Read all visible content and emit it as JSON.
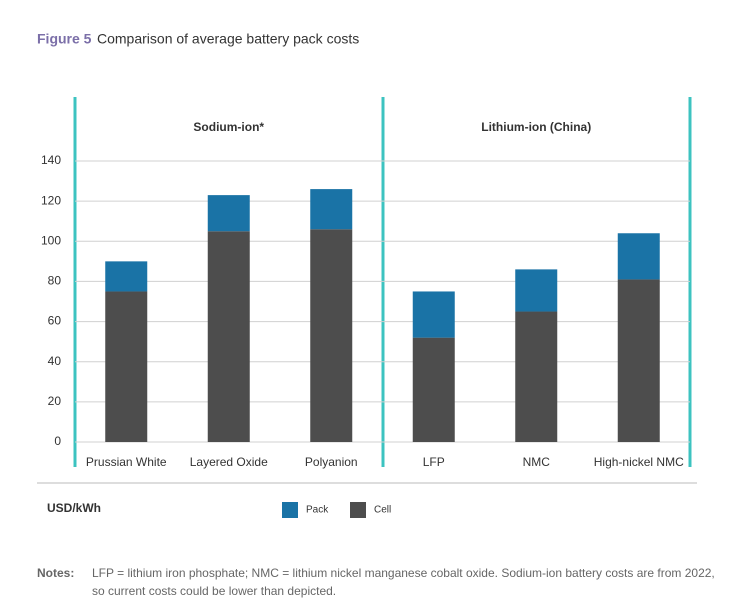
{
  "chart_data": {
    "type": "bar",
    "stacked": true,
    "figure_label": "Figure 5",
    "title": "Comparison of average battery pack costs",
    "group_labels": [
      "Sodium-ion*",
      "Lithium-ion (China)"
    ],
    "categories": [
      "Prussian White",
      "Layered Oxide",
      "Polyanion",
      "LFP",
      "NMC",
      "High-nickel NMC"
    ],
    "series": [
      {
        "name": "Cell",
        "color": "#4d4d4d",
        "values": [
          75,
          105,
          106,
          52,
          65,
          81
        ]
      },
      {
        "name": "Pack",
        "color": "#1a73a6",
        "values": [
          15,
          18,
          20,
          23,
          21,
          23
        ]
      }
    ],
    "ylabel": "USD/kWh",
    "ylim": [
      0,
      140
    ],
    "yticks": [
      0,
      20,
      40,
      60,
      80,
      100,
      120,
      140
    ],
    "grid": true
  },
  "notes": {
    "label": "Notes:",
    "lines": [
      "LFP = lithium iron phosphate; NMC = lithium nickel manganese cobalt oxide. Sodium-ion battery costs are from 2022,",
      "so current costs could be lower than depicted."
    ]
  }
}
